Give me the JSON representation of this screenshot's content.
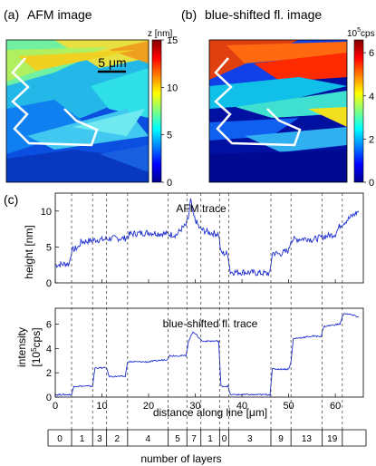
{
  "panel_a": {
    "label": "(a)",
    "title": "AFM image",
    "colorbar_title": "z [nm]",
    "colorbar_ticks": [
      "15",
      "10",
      "5",
      "0"
    ],
    "scale_bar": "5 μm"
  },
  "panel_b": {
    "label": "(b)",
    "title": "blue-shifted fl. image",
    "colorbar_title_base": "10",
    "colorbar_title_exp": "5",
    "colorbar_title_unit": "cps",
    "colorbar_ticks": [
      "6",
      "4",
      "2",
      "0"
    ]
  },
  "panel_c": {
    "label": "(c)",
    "layers_xlabel": "number of layers",
    "layers": [
      "0",
      "1",
      "3",
      "2",
      "4",
      "5",
      "7",
      "1",
      "0",
      "3",
      "9",
      "13",
      "19"
    ]
  },
  "chart_data": [
    {
      "type": "line",
      "title": "AFM trace",
      "ylabel": "height [nm]",
      "xlim": [
        0,
        66
      ],
      "ylim": [
        0,
        12.5
      ],
      "y_ticks": [
        0,
        5,
        10
      ],
      "series": [
        {
          "x": [
            0,
            3,
            3.5,
            5,
            5.5,
            9,
            10,
            12,
            15,
            16,
            20,
            24,
            26,
            27,
            28,
            28.5,
            29,
            29.5,
            30,
            31,
            33,
            35,
            35.5,
            37,
            37.5,
            40,
            46,
            46.5,
            48,
            50,
            50.5,
            54,
            55,
            58,
            60,
            61,
            64,
            65
          ],
          "y": [
            2.5,
            2.7,
            4.5,
            5.0,
            5.7,
            6.0,
            6.0,
            6.2,
            6.2,
            6.8,
            7.0,
            6.8,
            6.7,
            7.5,
            8.0,
            9.0,
            11.5,
            9.5,
            8.8,
            7.5,
            7.0,
            6.8,
            4.2,
            4.0,
            1.5,
            1.5,
            1.3,
            4.2,
            4.0,
            4.5,
            6.0,
            6.2,
            6.0,
            6.5,
            6.8,
            8.0,
            9.5,
            10.0
          ]
        }
      ]
    },
    {
      "type": "line",
      "title": "blue-shifted fl. trace",
      "ylabel": "intensity [10^5cps]",
      "xlabel": "distance along line [μm]",
      "xlim": [
        0,
        66
      ],
      "ylim": [
        0,
        7.3
      ],
      "x_ticks": [
        0,
        10,
        20,
        30,
        40,
        50,
        60
      ],
      "y_ticks": [
        0,
        2,
        4,
        6
      ],
      "series": [
        {
          "x": [
            0,
            3.5,
            4,
            8,
            8.5,
            11,
            11.5,
            15,
            15.5,
            20,
            24,
            24.5,
            28,
            28.5,
            29.5,
            30,
            31,
            31.5,
            35,
            35.5,
            37,
            37.5,
            46,
            46.5,
            50,
            50.5,
            51,
            55,
            57,
            57.5,
            61,
            61.5,
            62,
            65
          ],
          "y": [
            0.2,
            0.2,
            0.9,
            0.9,
            2.4,
            2.4,
            1.7,
            1.7,
            2.9,
            2.9,
            3.1,
            3.4,
            3.4,
            4.5,
            5.4,
            5.2,
            4.8,
            4.6,
            4.6,
            0.9,
            0.9,
            0.2,
            0.2,
            2.3,
            2.3,
            2.9,
            4.8,
            5.0,
            5.0,
            5.8,
            6.0,
            6.6,
            6.9,
            6.6
          ]
        }
      ]
    }
  ]
}
